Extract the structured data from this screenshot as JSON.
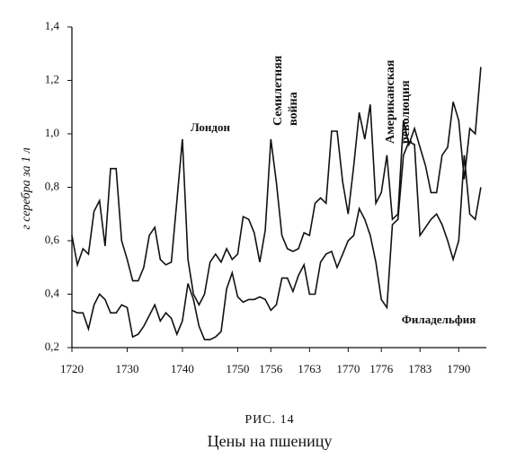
{
  "chart_data": {
    "type": "line",
    "title": "Цены на пшеницу",
    "figure_label": "РИС. 14",
    "y_label": "г серебра за 1 л",
    "x": [
      1720,
      1721,
      1722,
      1723,
      1724,
      1725,
      1726,
      1727,
      1728,
      1729,
      1730,
      1731,
      1732,
      1733,
      1734,
      1735,
      1736,
      1737,
      1738,
      1739,
      1740,
      1741,
      1742,
      1743,
      1744,
      1745,
      1746,
      1747,
      1748,
      1749,
      1750,
      1751,
      1752,
      1753,
      1754,
      1755,
      1756,
      1757,
      1758,
      1759,
      1760,
      1761,
      1762,
      1763,
      1764,
      1765,
      1766,
      1767,
      1768,
      1769,
      1770,
      1771,
      1772,
      1773,
      1774,
      1775,
      1776,
      1777,
      1778,
      1779,
      1780,
      1781,
      1782,
      1783,
      1784,
      1785,
      1786,
      1787,
      1788,
      1789,
      1790,
      1791,
      1792,
      1793,
      1794
    ],
    "series": [
      {
        "name": "Лондон",
        "color": "#111111",
        "values": [
          0.62,
          0.51,
          0.57,
          0.55,
          0.71,
          0.75,
          0.58,
          0.87,
          0.87,
          0.6,
          0.53,
          0.45,
          0.45,
          0.5,
          0.62,
          0.65,
          0.53,
          0.51,
          0.52,
          0.75,
          0.98,
          0.53,
          0.4,
          0.36,
          0.4,
          0.52,
          0.55,
          0.52,
          0.57,
          0.53,
          0.55,
          0.69,
          0.68,
          0.63,
          0.52,
          0.64,
          0.98,
          0.82,
          0.62,
          0.57,
          0.56,
          0.57,
          0.63,
          0.62,
          0.74,
          0.76,
          0.74,
          1.01,
          1.01,
          0.82,
          0.7,
          0.88,
          1.08,
          0.98,
          1.11,
          0.74,
          0.78,
          0.92,
          0.68,
          0.7,
          1.05,
          0.96,
          1.02,
          0.95,
          0.88,
          0.78,
          0.78,
          0.92,
          0.95,
          1.12,
          1.05,
          0.83,
          1.02,
          1.0,
          1.25
        ]
      },
      {
        "name": "Филадельфия",
        "color": "#111111",
        "values": [
          0.34,
          0.33,
          0.33,
          0.27,
          0.36,
          0.4,
          0.38,
          0.33,
          0.33,
          0.36,
          0.35,
          0.24,
          0.25,
          0.28,
          0.32,
          0.36,
          0.3,
          0.33,
          0.31,
          0.25,
          0.3,
          0.44,
          0.38,
          0.28,
          0.23,
          0.23,
          0.24,
          0.26,
          0.42,
          0.48,
          0.39,
          0.37,
          0.38,
          0.38,
          0.39,
          0.38,
          0.34,
          0.36,
          0.46,
          0.46,
          0.41,
          0.47,
          0.51,
          0.4,
          0.4,
          0.52,
          0.55,
          0.56,
          0.5,
          0.55,
          0.6,
          0.62,
          0.72,
          0.68,
          0.62,
          0.52,
          0.38,
          0.35,
          0.66,
          0.68,
          0.92,
          0.97,
          0.96,
          0.62,
          0.65,
          0.68,
          0.7,
          0.66,
          0.6,
          0.53,
          0.6,
          0.92,
          0.7,
          0.68,
          0.8
        ]
      }
    ],
    "annotations": [
      [
        "Семилетняя",
        "война"
      ],
      [
        "Американская",
        "революция"
      ]
    ],
    "xlim": [
      1720,
      1795
    ],
    "xticks": [
      1720,
      1730,
      1740,
      1750,
      1756,
      1763,
      1770,
      1776,
      1783,
      1790
    ],
    "ylim": [
      0.2,
      1.4
    ],
    "yticks": [
      {
        "value": 0.2,
        "label": "0,2"
      },
      {
        "value": 0.4,
        "label": "0,4"
      },
      {
        "value": 0.6,
        "label": "0,6"
      },
      {
        "value": 0.8,
        "label": "0,8"
      },
      {
        "value": 1.0,
        "label": "1,0"
      },
      {
        "value": 1.2,
        "label": "1,2"
      },
      {
        "value": 1.4,
        "label": "1,4"
      }
    ],
    "grid": false
  }
}
